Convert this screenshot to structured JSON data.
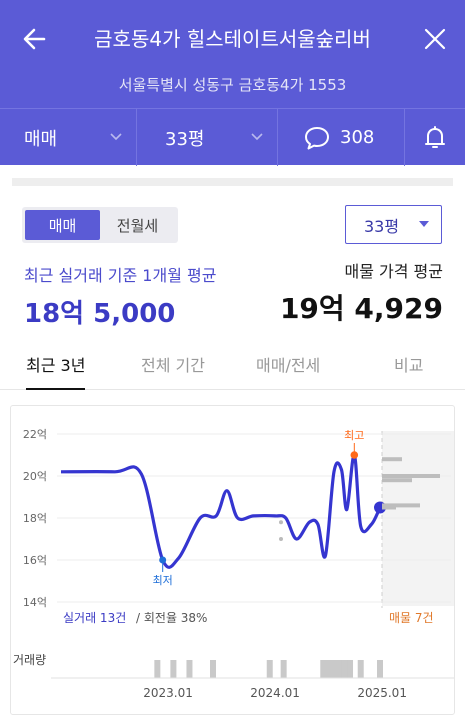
{
  "header": {
    "title": "금호동4가 힐스테이트서울숲리버",
    "address": "서울특별시 성동구 금호동4가 1553",
    "filters": {
      "trade_type": "매매",
      "area": "33평",
      "comment_count": "308"
    }
  },
  "controls": {
    "segment": [
      "매매",
      "전월세"
    ],
    "area_select": "33평"
  },
  "summary": {
    "left_label": "최근 실거래 기준 1개월 평균",
    "left_price": "18억 5,000",
    "right_label": "매물 가격 평균",
    "right_price": "19억 4,929"
  },
  "tabs": [
    "최근 3년",
    "전체 기간",
    "매매/전세",
    "비교"
  ],
  "chart_data": {
    "type": "line",
    "ylim": [
      14,
      22
    ],
    "yticks": [
      "22억",
      "20억",
      "18억",
      "16억",
      "14억"
    ],
    "xticks": [
      "2023.01",
      "2024.01",
      "2025.01"
    ],
    "series": [
      {
        "values": [
          [
            2022.0,
            20.2
          ],
          [
            2022.5,
            20.2
          ],
          [
            2022.75,
            20.1
          ],
          [
            2022.95,
            16.0
          ],
          [
            2023.1,
            16.1
          ],
          [
            2023.3,
            18.0
          ],
          [
            2023.45,
            18.1
          ],
          [
            2023.55,
            19.3
          ],
          [
            2023.65,
            18.0
          ],
          [
            2023.8,
            18.1
          ],
          [
            2024.0,
            18.1
          ],
          [
            2024.1,
            18.0
          ],
          [
            2024.2,
            17.0
          ],
          [
            2024.32,
            17.8
          ],
          [
            2024.4,
            17.7
          ],
          [
            2024.47,
            16.2
          ],
          [
            2024.55,
            20.2
          ],
          [
            2024.62,
            20.3
          ],
          [
            2024.67,
            18.4
          ],
          [
            2024.74,
            21.0
          ],
          [
            2024.8,
            17.6
          ],
          [
            2024.9,
            17.7
          ],
          [
            2024.98,
            18.5
          ]
        ]
      }
    ],
    "marker_labels": {
      "low": "최저",
      "high": "최고"
    },
    "listings": {
      "values": [
        20.8,
        20.0,
        19.8,
        18.6,
        18.5
      ],
      "label": "매물 7건"
    },
    "footer_left": "실거래 13건",
    "footer_rate": "/ 회전율 38%",
    "volume_label": "거래량",
    "volume_bars": [
      2022.9,
      2023.05,
      2023.2,
      2023.42,
      2023.95,
      2024.08,
      2024.45,
      2024.5,
      2024.55,
      2024.6,
      2024.65,
      2024.7,
      2024.8,
      2024.98
    ]
  },
  "colors": {
    "accent": "#5b5bd6",
    "line": "#3535d0",
    "high": "#ff6a1a",
    "low": "#1f6fd8"
  }
}
